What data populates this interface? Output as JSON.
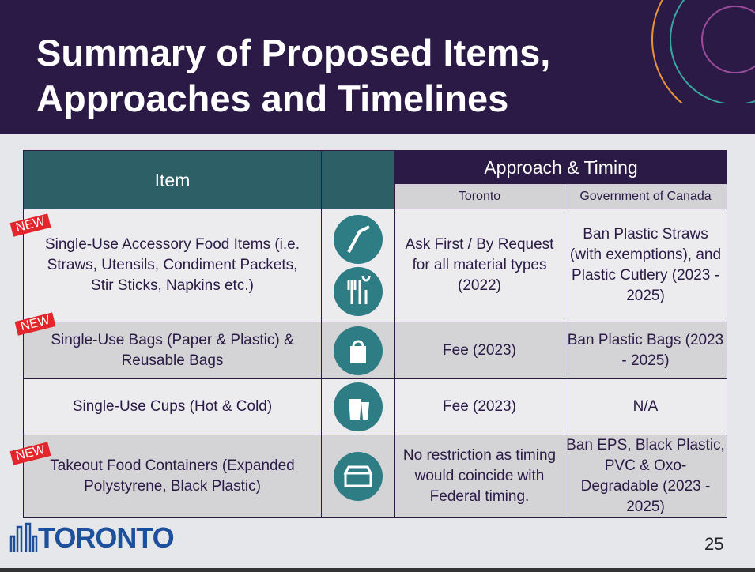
{
  "title": {
    "line1": "Summary of Proposed Items,",
    "line2": "Approaches and Timelines"
  },
  "table": {
    "header_item": "Item",
    "header_approach": "Approach & Timing",
    "sub_toronto": "Toronto",
    "sub_canada": "Government  of Canada",
    "rows": [
      {
        "badge": "NEW",
        "item": "Single-Use Accessory Food Items (i.e. Straws, Utensils, Condiment Packets, Stir Sticks, Napkins etc.)",
        "icons": [
          "straw-icon",
          "cutlery-icon"
        ],
        "toronto": "Ask First / By Request for all material types (2022)",
        "canada": "Ban Plastic Straws (with exemptions), and Plastic Cutlery (2023 - 2025)"
      },
      {
        "badge": "NEW",
        "item": "Single-Use Bags (Paper & Plastic) & Reusable Bags",
        "icons": [
          "bag-icon"
        ],
        "toronto": "Fee (2023)",
        "canada": "Ban Plastic Bags (2023 - 2025)"
      },
      {
        "badge": "",
        "item": "Single-Use Cups (Hot & Cold)",
        "icons": [
          "cup-icon"
        ],
        "toronto": "Fee (2023)",
        "canada": "N/A"
      },
      {
        "badge": "NEW",
        "item": "Takeout Food Containers (Expanded Polystyrene, Black Plastic)",
        "icons": [
          "takeout-container-icon"
        ],
        "toronto": "No restriction as timing would coincide with Federal timing.",
        "canada": "Ban EPS, Black Plastic, PVC & Oxo-Degradable (2023 - 2025)"
      }
    ]
  },
  "footer": {
    "logo": "TORONTO",
    "page_number": "25"
  },
  "colors": {
    "header": "#2a1a45",
    "teal": "#2d5f66",
    "icon": "#2e7c84",
    "badge": "#e3262b",
    "logo": "#1c4f9c"
  }
}
